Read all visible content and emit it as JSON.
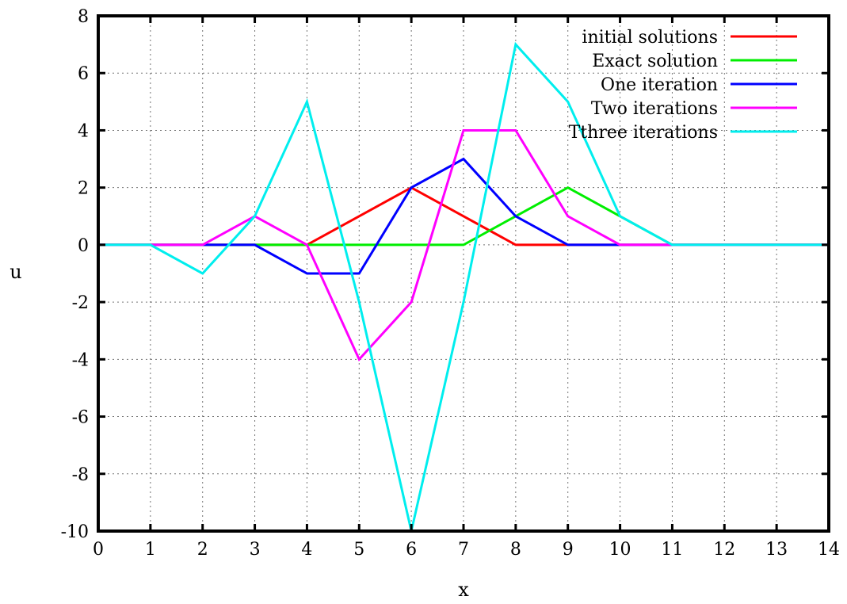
{
  "chart_data": {
    "type": "line",
    "title": "",
    "xlabel": "x",
    "ylabel": "u",
    "xlim": [
      0,
      14
    ],
    "ylim": [
      -10,
      8
    ],
    "xticks": [
      0,
      1,
      2,
      3,
      4,
      5,
      6,
      7,
      8,
      9,
      10,
      11,
      12,
      13,
      14
    ],
    "yticks": [
      -10,
      -8,
      -6,
      -4,
      -2,
      0,
      2,
      4,
      6,
      8
    ],
    "grid": true,
    "legend_position": "top-right",
    "x": [
      0,
      1,
      2,
      3,
      4,
      5,
      6,
      7,
      8,
      9,
      10,
      11,
      12,
      13,
      14
    ],
    "series": [
      {
        "name": "initial solutions",
        "color": "#ff0000",
        "values": [
          0,
          0,
          0,
          0,
          0,
          1,
          2,
          1,
          0,
          0,
          0,
          0,
          0,
          0,
          0
        ]
      },
      {
        "name": "Exact solution",
        "color": "#00ee00",
        "values": [
          0,
          0,
          0,
          0,
          0,
          0,
          0,
          0,
          1,
          2,
          1,
          0,
          0,
          0,
          0
        ]
      },
      {
        "name": "One iteration",
        "color": "#0000ff",
        "values": [
          0,
          0,
          0,
          0,
          -1,
          -1,
          2,
          3,
          1,
          0,
          0,
          0,
          0,
          0,
          0
        ]
      },
      {
        "name": "Two iterations",
        "color": "#ff00ff",
        "values": [
          0,
          0,
          0,
          1,
          0,
          -4,
          -2,
          4,
          4,
          1,
          0,
          0,
          0,
          0,
          0
        ]
      },
      {
        "name": "Tthree iterations",
        "color": "#00eeee",
        "values": [
          0,
          0,
          -1,
          1,
          5,
          -2,
          -10,
          -2,
          7,
          5,
          1,
          0,
          0,
          0,
          0
        ]
      }
    ]
  }
}
